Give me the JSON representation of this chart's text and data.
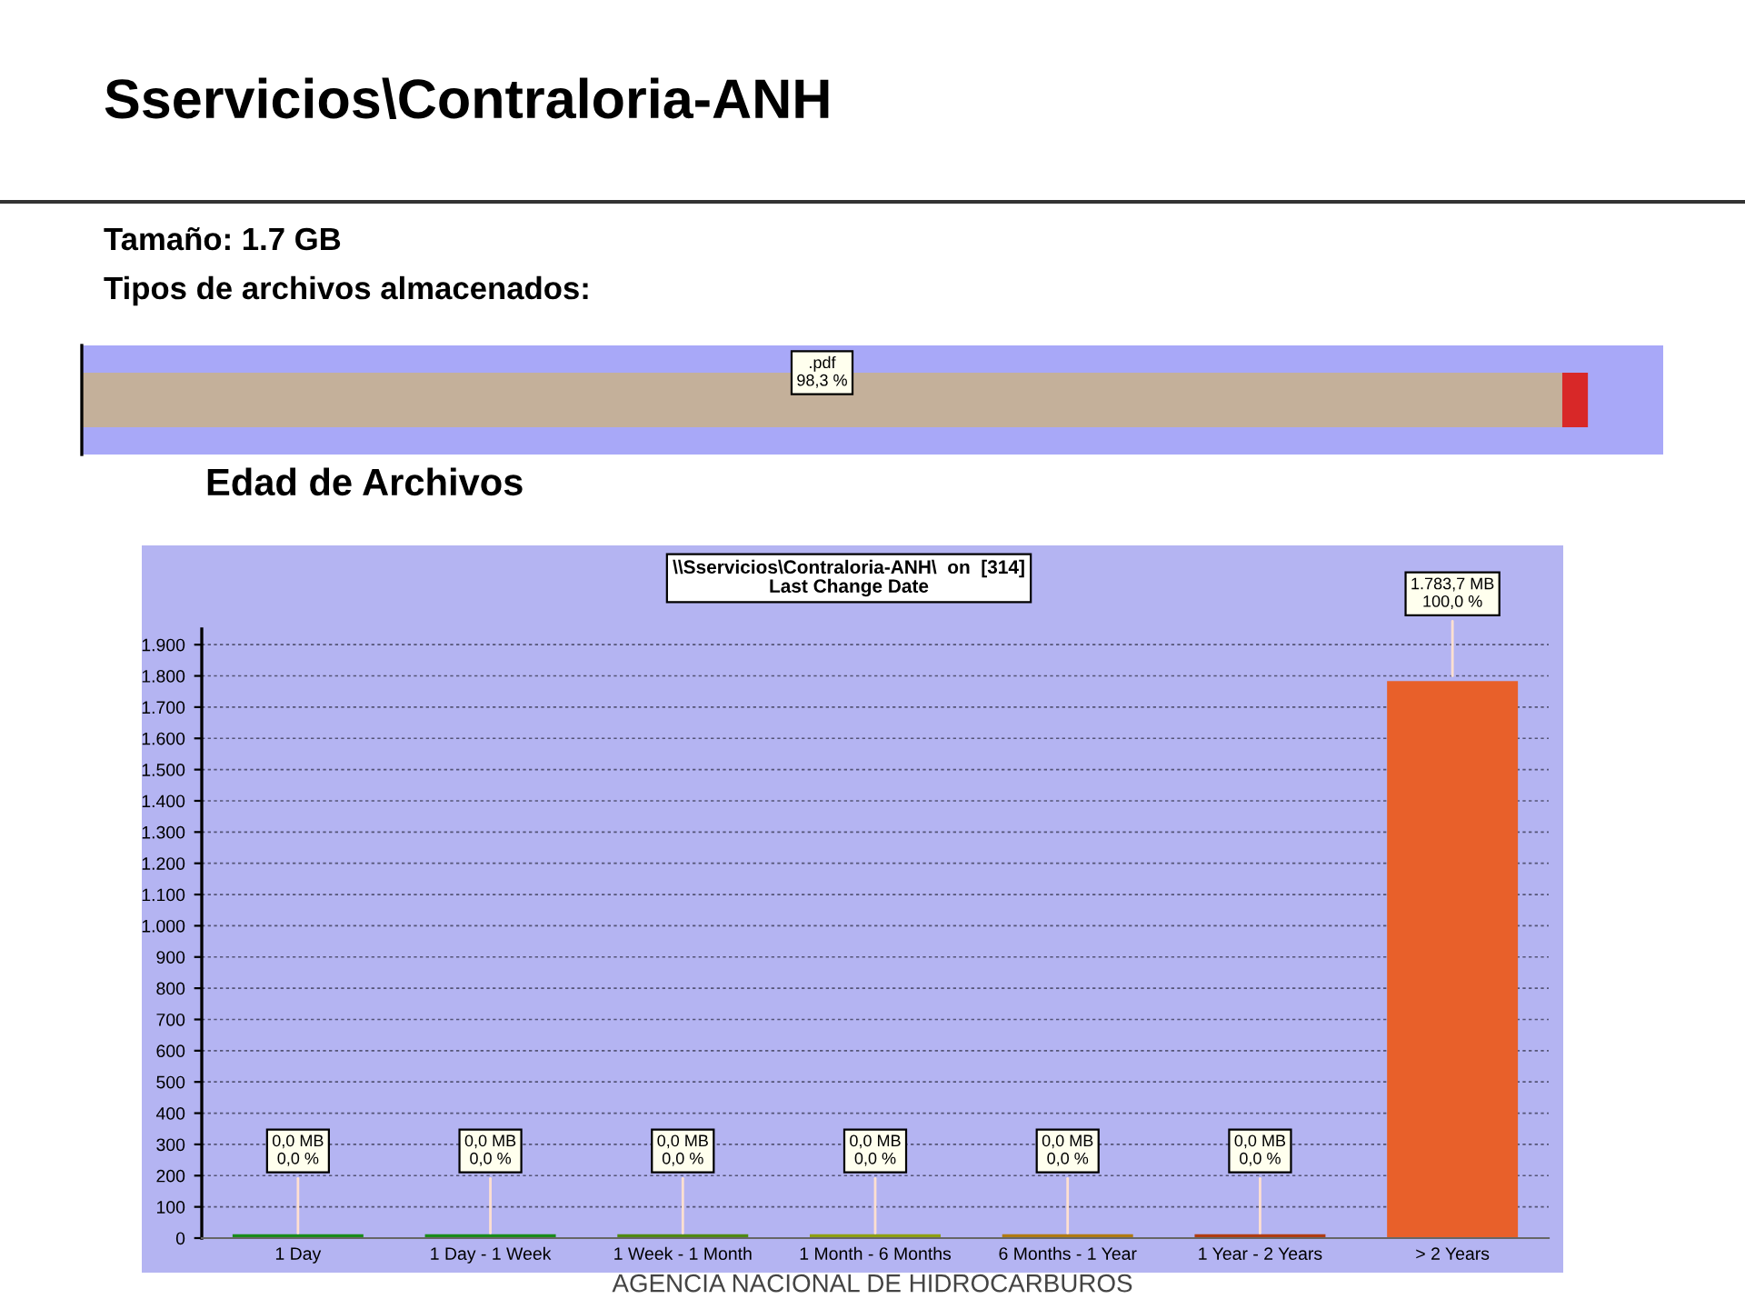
{
  "chart_data": [
    {
      "type": "bar",
      "orientation": "horizontal",
      "stacked": true,
      "title": "Sservicios\\Contraloria-ANH",
      "annotations": [
        "Tamaño: 1.7 GB",
        "Tipos de archivos almacenados:"
      ],
      "categories": [
        null
      ],
      "series": [
        {
          "color": "#c4b09a",
          "values": [
            98.3
          ],
          "value_labels": [
            ".pdf\n98,3 %"
          ]
        },
        {
          "color": "#d82828",
          "values": [
            1.7
          ]
        }
      ],
      "tick_labels": false
    },
    {
      "type": "bar",
      "title": "Edad de Archivos",
      "subtitle": "\\\\Sservicios\\Contraloria-ANH\\  on  [314]\nLast Change Date",
      "categories": [
        "1 Day",
        "1 Day - 1 Week",
        "1 Week - 1 Month",
        "1 Month - 6 Months",
        "6 Months - 1 Year",
        "1 Year - 2 Years",
        "> 2 Years"
      ],
      "values": [
        0,
        0,
        0,
        0,
        0,
        0,
        1783.7
      ],
      "colors": [
        "#1a8c1a",
        "#1a8c1a",
        "#4f8a12",
        "#8ea012",
        "#b07a12",
        "#b03c12",
        "#e8602a"
      ],
      "value_labels": [
        "0,0 MB\n0,0 %",
        "0,0 MB\n0,0 %",
        "0,0 MB\n0,0 %",
        "0,0 MB\n0,0 %",
        "0,0 MB\n0,0 %",
        "0,0 MB\n0,0 %",
        "1.783,7 MB\n100,0 %"
      ],
      "ylim": [
        0,
        1950
      ],
      "yticks": [
        0,
        100,
        200,
        300,
        400,
        500,
        600,
        700,
        800,
        900,
        {
          "value": 1000,
          "label": "1.000"
        },
        {
          "value": 1100,
          "label": "1.100"
        },
        {
          "value": 1200,
          "label": "1.200"
        },
        {
          "value": 1300,
          "label": "1.300"
        },
        {
          "value": 1400,
          "label": "1.400"
        },
        {
          "value": 1500,
          "label": "1.500"
        },
        {
          "value": 1600,
          "label": "1.600"
        },
        {
          "value": 1700,
          "label": "1.700"
        },
        {
          "value": 1800,
          "label": "1.800"
        },
        {
          "value": 1900,
          "label": "1.900"
        }
      ],
      "grid": "y",
      "annotations": [
        "AGENCIA NACIONAL DE HIDROCARBUROS"
      ]
    }
  ]
}
